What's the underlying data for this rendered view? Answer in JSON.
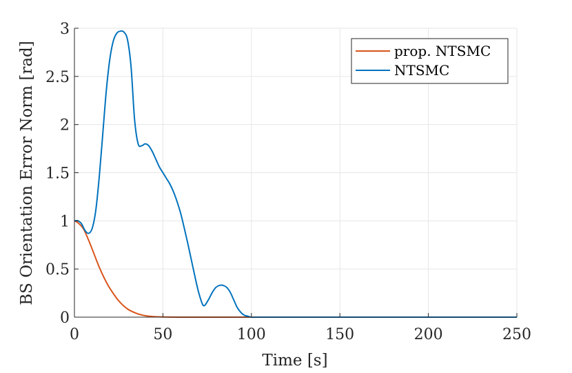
{
  "chart_data": {
    "type": "line",
    "title": "",
    "xlabel": "Time [s]",
    "ylabel": "BS Orientation Error Norm [rad]",
    "xlim": [
      0,
      250
    ],
    "ylim": [
      0,
      3
    ],
    "xticks": [
      0,
      50,
      100,
      150,
      200,
      250
    ],
    "yticks": [
      0,
      0.5,
      1,
      1.5,
      2,
      2.5,
      3
    ],
    "xtick_labels": [
      "0",
      "50",
      "100",
      "150",
      "200",
      "250"
    ],
    "ytick_labels": [
      "0",
      "0.5",
      "1",
      "1.5",
      "2",
      "2.5",
      "3"
    ],
    "grid": true,
    "legend": "top-right",
    "series": [
      {
        "name": "prop. NTSMC",
        "color": "#D95319",
        "x": [
          0,
          2,
          5,
          8,
          11,
          14,
          17,
          20,
          25,
          30,
          35,
          40,
          45,
          50,
          60,
          80,
          100,
          150,
          250
        ],
        "y": [
          1.0,
          0.98,
          0.92,
          0.8,
          0.66,
          0.52,
          0.4,
          0.3,
          0.17,
          0.085,
          0.04,
          0.015,
          0.005,
          0.002,
          0.0,
          0.0,
          0.0,
          0.0,
          0.0
        ]
      },
      {
        "name": "NTSMC",
        "color": "#0072BD",
        "x": [
          0,
          2,
          4,
          6,
          8,
          10,
          12,
          14,
          16,
          18,
          20,
          22,
          24,
          26,
          28,
          30,
          32,
          34,
          36,
          38,
          40,
          42,
          44,
          46,
          48,
          50,
          52,
          54,
          56,
          58,
          60,
          62,
          64,
          66,
          68,
          70,
          72,
          73,
          74,
          76,
          78,
          80,
          82,
          84,
          86,
          88,
          90,
          92,
          94,
          96,
          98,
          100,
          105,
          110,
          150,
          200,
          250
        ],
        "y": [
          1.0,
          1.0,
          0.97,
          0.9,
          0.87,
          0.92,
          1.1,
          1.45,
          1.9,
          2.35,
          2.68,
          2.87,
          2.95,
          2.97,
          2.96,
          2.88,
          2.6,
          2.05,
          1.8,
          1.78,
          1.8,
          1.78,
          1.72,
          1.64,
          1.56,
          1.5,
          1.44,
          1.38,
          1.3,
          1.2,
          1.08,
          0.93,
          0.77,
          0.6,
          0.43,
          0.27,
          0.15,
          0.12,
          0.13,
          0.19,
          0.26,
          0.31,
          0.33,
          0.33,
          0.31,
          0.26,
          0.18,
          0.1,
          0.05,
          0.02,
          0.01,
          0.0,
          0.0,
          0.0,
          0.0,
          0.0,
          0.0
        ]
      }
    ]
  }
}
